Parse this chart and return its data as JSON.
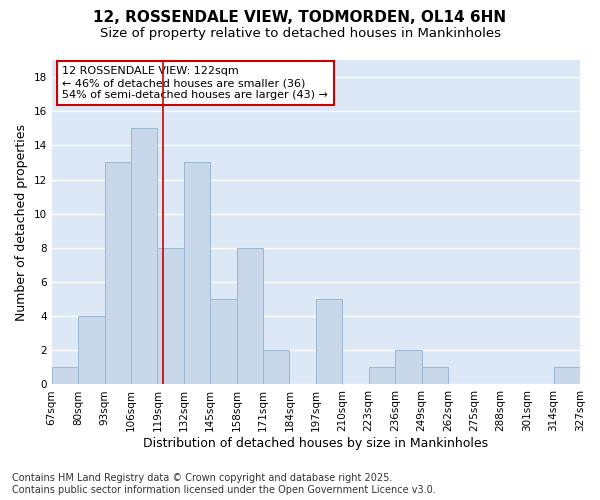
{
  "title1": "12, ROSSENDALE VIEW, TODMORDEN, OL14 6HN",
  "title2": "Size of property relative to detached houses in Mankinholes",
  "xlabel": "Distribution of detached houses by size in Mankinholes",
  "ylabel": "Number of detached properties",
  "bar_color": "#c8d8ea",
  "bar_edge_color": "#9ab8d0",
  "bins": [
    67,
    80,
    93,
    106,
    119,
    132,
    145,
    158,
    171,
    184,
    197,
    210,
    223,
    236,
    249,
    262,
    275,
    288,
    301,
    314,
    327
  ],
  "counts": [
    1,
    4,
    13,
    15,
    8,
    13,
    5,
    8,
    2,
    0,
    5,
    0,
    1,
    2,
    1,
    0,
    0,
    0,
    0,
    1
  ],
  "property_size": 122,
  "vline_color": "#cc0000",
  "annotation_text": "12 ROSSENDALE VIEW: 122sqm\n← 46% of detached houses are smaller (36)\n54% of semi-detached houses are larger (43) →",
  "annotation_box_color": "white",
  "annotation_box_edge_color": "#cc0000",
  "yticks": [
    0,
    2,
    4,
    6,
    8,
    10,
    12,
    14,
    16,
    18
  ],
  "ylim": [
    0,
    19
  ],
  "footer_text": "Contains HM Land Registry data © Crown copyright and database right 2025.\nContains public sector information licensed under the Open Government Licence v3.0.",
  "fig_bg_color": "#ffffff",
  "plot_bg_color": "#dce8f5",
  "grid_color": "#ffffff",
  "title_fontsize": 11,
  "subtitle_fontsize": 9.5,
  "tick_label_fontsize": 7.5,
  "axis_label_fontsize": 9,
  "annotation_fontsize": 8,
  "footer_fontsize": 7
}
